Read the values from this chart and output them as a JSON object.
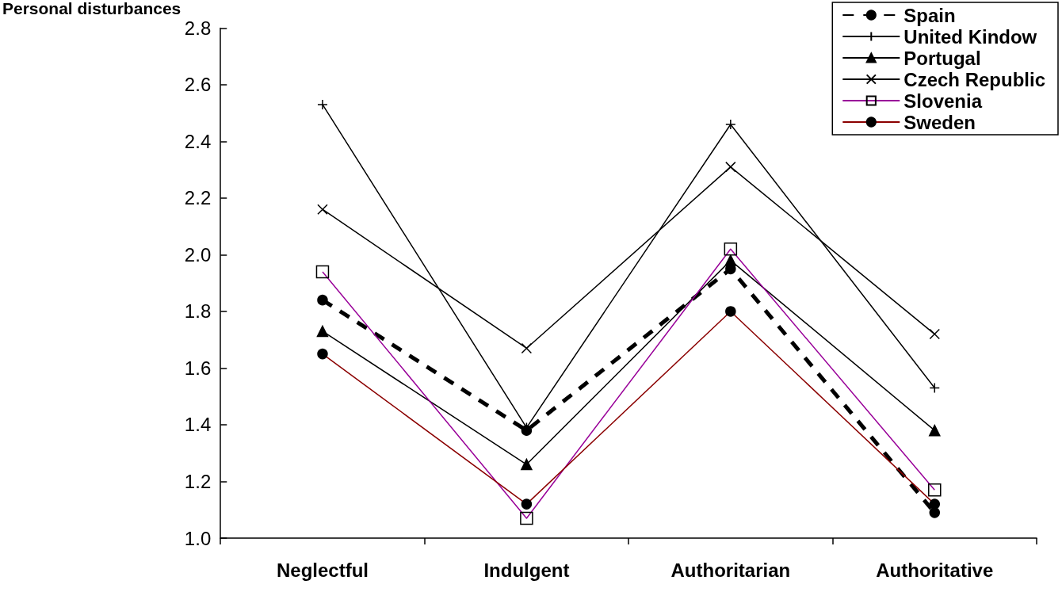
{
  "chart_data": {
    "type": "line",
    "ylabel": "Personal disturbances",
    "categories": [
      "Neglectful",
      "Indulgent",
      "Authoritarian",
      "Authoritative"
    ],
    "series": [
      {
        "name": "Spain",
        "color": "#000000",
        "marker": "circle",
        "line_style": "dashed",
        "values": [
          1.84,
          1.38,
          1.95,
          1.09
        ]
      },
      {
        "name": "United Kindow",
        "color": "#000000",
        "marker": "plus",
        "line_style": "solid",
        "values": [
          2.53,
          1.39,
          2.46,
          1.53
        ]
      },
      {
        "name": "Portugal",
        "color": "#000000",
        "marker": "triangle",
        "line_style": "solid",
        "values": [
          1.73,
          1.26,
          1.98,
          1.38
        ]
      },
      {
        "name": "Czech Republic",
        "color": "#000000",
        "marker": "cross",
        "line_style": "solid",
        "values": [
          2.16,
          1.67,
          2.31,
          1.72
        ]
      },
      {
        "name": "Slovenia",
        "color": "#990099",
        "marker": "square",
        "line_style": "solid",
        "values": [
          1.94,
          1.07,
          2.02,
          1.17
        ]
      },
      {
        "name": "Sweden",
        "color": "#8b0000",
        "marker": "circle",
        "line_style": "solid",
        "values": [
          1.65,
          1.12,
          1.8,
          1.12
        ]
      }
    ],
    "ylim": [
      1.0,
      2.8
    ],
    "yticks": [
      {
        "value": 1.0,
        "label": "1.0"
      },
      {
        "value": 1.2,
        "label": "1.2"
      },
      {
        "value": 1.4,
        "label": "1.4"
      },
      {
        "value": 1.6,
        "label": "1.6"
      },
      {
        "value": 1.8,
        "label": "1.8"
      },
      {
        "value": 2.0,
        "label": "2.0"
      },
      {
        "value": 2.2,
        "label": "2.2"
      },
      {
        "value": 2.4,
        "label": "2.4"
      },
      {
        "value": 2.6,
        "label": "2.6"
      },
      {
        "value": 2.8,
        "label": "2.8"
      }
    ],
    "grid": false,
    "legend": "top right"
  }
}
